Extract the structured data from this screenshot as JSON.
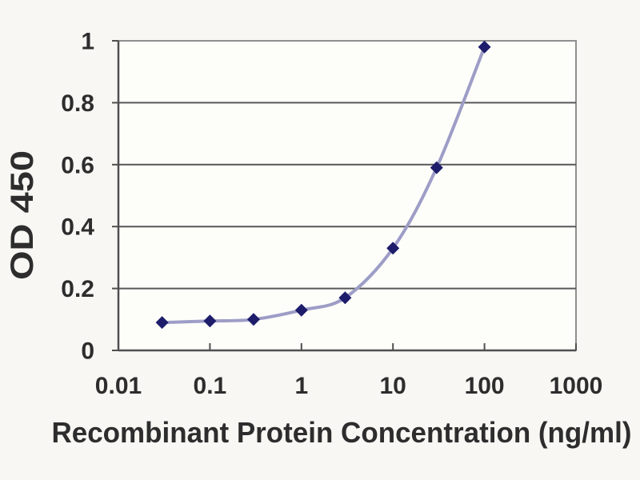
{
  "figure": {
    "kind": "ELISA standard curve line chart"
  },
  "chart_data": {
    "type": "line",
    "title": "",
    "xlabel": "Recombinant Protein Concentration (ng/ml)",
    "ylabel": "OD 450",
    "x_scale": "log10",
    "xlim": [
      0.01,
      1000
    ],
    "ylim": [
      0,
      1
    ],
    "x_ticks": [
      0.01,
      0.1,
      1,
      10,
      100,
      1000
    ],
    "x_tick_labels": [
      "0.01",
      "0.1",
      "1",
      "10",
      "100",
      "1000"
    ],
    "y_ticks": [
      0,
      0.2,
      0.4,
      0.6,
      0.8,
      1
    ],
    "y_tick_labels": [
      "0",
      "0.2",
      "0.4",
      "0.6",
      "0.8",
      "1"
    ],
    "grid": "horizontal",
    "legend": "none",
    "series": [
      {
        "name": "OD 450",
        "marker": "diamond",
        "x": [
          0.03,
          0.1,
          0.3,
          1,
          3,
          10,
          30,
          100
        ],
        "y": [
          0.09,
          0.095,
          0.1,
          0.13,
          0.17,
          0.33,
          0.59,
          0.98
        ]
      }
    ]
  },
  "colors": {
    "page_background": "#f8f7f3",
    "plot_background": "#fdfdfa",
    "gridline": "#575757",
    "plot_border": "#8e8e8e",
    "axis": "#4f4f4f",
    "series_line": "#9d9dc7",
    "series_marker": "#1d1d6b",
    "text": "#2d2d2d"
  }
}
